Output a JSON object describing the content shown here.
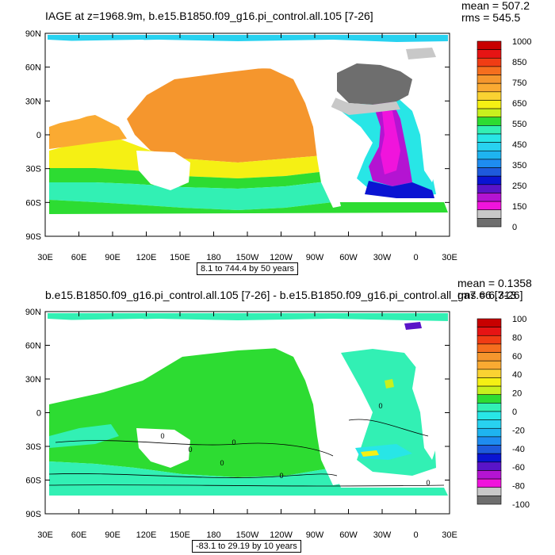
{
  "colors": {
    "ocean_positive": "#f5a623",
    "land": "#ffffff",
    "ice": "#888888",
    "diff_green": "#44dd44",
    "diff_cyan": "#33eedd"
  },
  "chart_data": [
    {
      "type": "heatmap",
      "title": "IAGE at z=1968.9m, b.e15.B1850.f09_g16.pi_control.all.105 [7-26]",
      "stats": {
        "mean": "mean = 507.2",
        "rms": "rms = 545.5"
      },
      "range_label": "8.1 to 744.4 by 50 years",
      "x_ticks": [
        "30E",
        "60E",
        "90E",
        "120E",
        "150E",
        "180",
        "150W",
        "120W",
        "90W",
        "60W",
        "30W",
        "0",
        "30E"
      ],
      "y_ticks": [
        "90N",
        "60N",
        "30N",
        "0",
        "30S",
        "60S",
        "90S"
      ],
      "colorbar": {
        "labels": [
          "1000",
          "850",
          "750",
          "650",
          "550",
          "450",
          "350",
          "250",
          "150",
          "0"
        ],
        "colors": [
          "#c80000",
          "#e61414",
          "#f03c14",
          "#f56e1e",
          "#f5962d",
          "#faaa32",
          "#fad232",
          "#f5f014",
          "#c8f01e",
          "#2ddc32",
          "#32f0b4",
          "#28e6e6",
          "#28d2f0",
          "#1eb4f0",
          "#1e8cf0",
          "#1e5adc",
          "#0a14d2",
          "#5a14c8",
          "#b414d2",
          "#f014dc",
          "#c8c8c8",
          "#6e6e6e"
        ],
        "ylim": [
          0,
          1000
        ]
      },
      "xlim": [
        "30E",
        "30E"
      ],
      "ylim": [
        "90S",
        "90N"
      ]
    },
    {
      "type": "heatmap",
      "title": "b.e15.B1850.f09_g16.pi_control.all.105 [7-26] - b.e15.B1850.f09_g16.pi_control.all_ga7.66 [7-26]",
      "stats": {
        "mean": "mean = 0.1358",
        "rms": "rms = 6.313"
      },
      "range_label": "-83.1 to 29.19 by 10 years",
      "x_ticks": [
        "30E",
        "60E",
        "90E",
        "120E",
        "150E",
        "180",
        "150W",
        "120W",
        "90W",
        "60W",
        "30W",
        "0",
        "30E"
      ],
      "y_ticks": [
        "90N",
        "60N",
        "30N",
        "0",
        "30S",
        "60S",
        "90S"
      ],
      "colorbar": {
        "labels": [
          "100",
          "80",
          "60",
          "40",
          "20",
          "0",
          "-20",
          "-40",
          "-60",
          "-80",
          "-100"
        ],
        "colors": [
          "#c80000",
          "#e61414",
          "#f03c14",
          "#f56e1e",
          "#f5962d",
          "#faaa32",
          "#fad232",
          "#f5f014",
          "#c8f01e",
          "#2ddc32",
          "#32f0b4",
          "#28e6e6",
          "#28d2f0",
          "#1eb4f0",
          "#1e8cf0",
          "#1e5adc",
          "#0a14d2",
          "#5a14c8",
          "#b414d2",
          "#f014dc",
          "#c8c8c8",
          "#6e6e6e"
        ],
        "ylim": [
          -100,
          100
        ]
      },
      "contour_labels": [
        "0",
        "0",
        "0",
        "0",
        "0",
        "0",
        "0"
      ],
      "xlim": [
        "30E",
        "30E"
      ],
      "ylim": [
        "90S",
        "90N"
      ]
    }
  ]
}
